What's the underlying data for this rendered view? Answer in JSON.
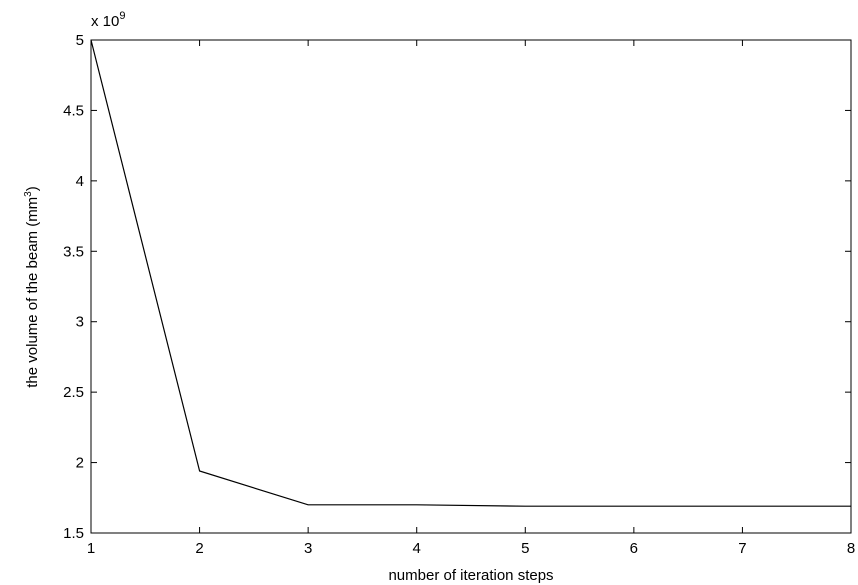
{
  "chart_data": {
    "type": "line",
    "xlabel": "number of iteration steps",
    "ylabel_main": "the volume of the beam (mm",
    "ylabel_sup": "3",
    "ylabel_tail": ")",
    "y_multiplier_base": "x 10",
    "y_multiplier_exp": "9",
    "xlim": [
      1,
      8
    ],
    "ylim": [
      1.5,
      5
    ],
    "x_ticks": [
      1,
      2,
      3,
      4,
      5,
      6,
      7,
      8
    ],
    "x_tick_labels": [
      "1",
      "2",
      "3",
      "4",
      "5",
      "6",
      "7",
      "8"
    ],
    "y_ticks": [
      1.5,
      2,
      2.5,
      3,
      3.5,
      4,
      4.5,
      5
    ],
    "y_tick_labels": [
      "1.5",
      "2",
      "2.5",
      "3",
      "3.5",
      "4",
      "4.5",
      "5"
    ],
    "grid": false,
    "series": [
      {
        "x": [
          1,
          2,
          3,
          4,
          5,
          6,
          7,
          8
        ],
        "y": [
          5.0,
          1.94,
          1.7,
          1.7,
          1.69,
          1.69,
          1.69,
          1.69
        ],
        "color": "#000000"
      }
    ]
  }
}
